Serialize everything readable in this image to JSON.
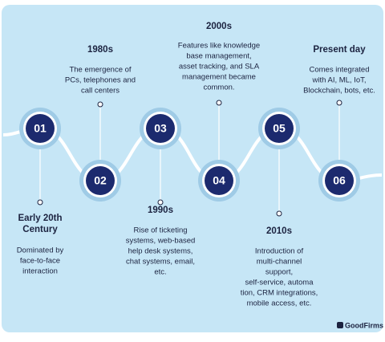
{
  "nodes": [
    {
      "number": "01",
      "title": [
        "Early 20th",
        "Century"
      ],
      "description": [
        "Dominated by",
        "face-to-face",
        "interaction"
      ]
    },
    {
      "number": "02",
      "title": [
        "1980s"
      ],
      "description": [
        "The emergence of",
        "PCs, telephones and",
        "call centers"
      ]
    },
    {
      "number": "03",
      "title": [
        "1990s"
      ],
      "description": [
        "Rise of ticketing",
        "systems, web-based",
        "help desk systems,",
        "chat systems, email,",
        "etc."
      ]
    },
    {
      "number": "04",
      "title": [
        "2000s"
      ],
      "description": [
        "Features like knowledge",
        "base management,",
        "asset tracking, and SLA",
        "management became",
        "common."
      ]
    },
    {
      "number": "05",
      "title": [
        "2010s"
      ],
      "description": [
        "Introduction of",
        "multi-channel",
        "support,",
        "self-service, automa",
        "tion, CRM integrations,",
        "mobile access, etc."
      ]
    },
    {
      "number": "06",
      "title": [
        "Present day"
      ],
      "description": [
        "Comes integrated",
        "with AI, ML, IoT,",
        "Blockchain, bots, etc."
      ]
    }
  ],
  "logo": "GoodFirms"
}
